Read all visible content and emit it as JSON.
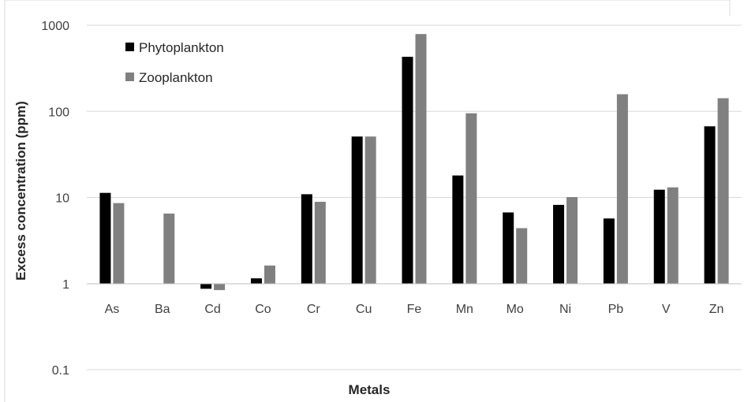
{
  "chart_data": {
    "type": "bar",
    "yscale": "log",
    "ylim": [
      0.1,
      1000
    ],
    "ytick_labels": [
      "0.1",
      "1",
      "10",
      "100",
      "1000"
    ],
    "ytick_values": [
      0.1,
      1,
      10,
      100,
      1000
    ],
    "xlabel": "Metals",
    "ylabel": "Excess concentration (ppm)",
    "grid": "horizontal",
    "legend_position": "top-left",
    "categories": [
      "As",
      "Ba",
      "Cd",
      "Co",
      "Cr",
      "Cu",
      "Fe",
      "Mn",
      "Mo",
      "Ni",
      "Pb",
      "V",
      "Zn"
    ],
    "series": [
      {
        "name": "Phytoplankton",
        "color": "#000000",
        "values": [
          11.3,
          null,
          0.87,
          1.15,
          10.9,
          51,
          430,
          18,
          6.7,
          8.2,
          5.7,
          12.3,
          67
        ]
      },
      {
        "name": "Zooplankton",
        "color": "#808080",
        "values": [
          8.6,
          6.5,
          0.84,
          1.62,
          8.9,
          51,
          790,
          95,
          4.4,
          10.1,
          158,
          13.1,
          142
        ]
      }
    ]
  }
}
